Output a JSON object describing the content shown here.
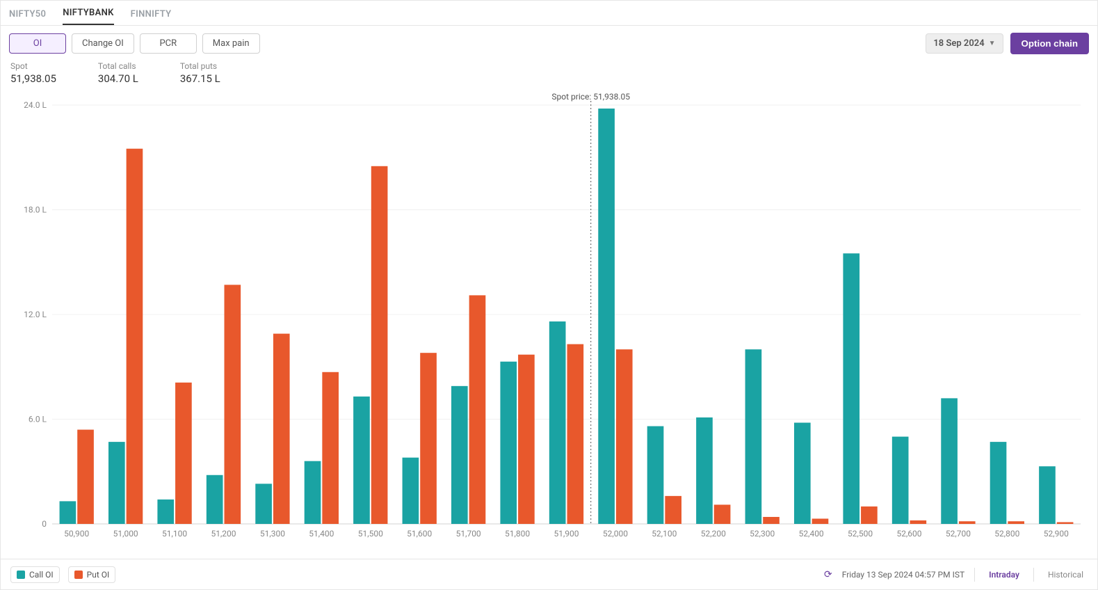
{
  "tabs": [
    "NIFTY50",
    "NIFTYBANK",
    "FINNIFTY"
  ],
  "active_tab_index": 1,
  "buttons": {
    "oi": "OI",
    "change_oi": "Change OI",
    "pcr": "PCR",
    "max_pain": "Max pain",
    "active_index": 0,
    "date": "18 Sep 2024",
    "option_chain": "Option chain"
  },
  "stats": {
    "spot_label": "Spot",
    "spot_value": "51,938.05",
    "total_calls_label": "Total calls",
    "total_calls_value": "304.70 L",
    "total_puts_label": "Total puts",
    "total_puts_value": "367.15 L"
  },
  "chart": {
    "type": "bar",
    "y_ticks": [
      0,
      6.0,
      12.0,
      18.0,
      24.0
    ],
    "y_tick_labels": [
      "0",
      "6.0 L",
      "12.0 L",
      "18.0 L",
      "24.0 L"
    ],
    "ylim": [
      0,
      24.0
    ],
    "x_labels": [
      "50,900",
      "51,000",
      "51,100",
      "51,200",
      "51,300",
      "51,400",
      "51,500",
      "51,600",
      "51,700",
      "51,800",
      "51,900",
      "52,000",
      "52,100",
      "52,200",
      "52,300",
      "52,400",
      "52,500",
      "52,600",
      "52,700",
      "52,800",
      "52,900"
    ],
    "call_values": [
      1.3,
      4.7,
      1.4,
      2.8,
      2.3,
      3.6,
      7.3,
      3.8,
      7.9,
      9.3,
      11.6,
      23.8,
      5.6,
      6.1,
      10.0,
      5.8,
      15.5,
      5.0,
      7.2,
      4.7,
      3.3
    ],
    "put_values": [
      5.4,
      21.5,
      8.1,
      13.7,
      10.9,
      8.7,
      20.5,
      9.8,
      13.1,
      9.7,
      10.3,
      10.0,
      1.6,
      1.1,
      0.4,
      0.3,
      1.0,
      0.2,
      0.15,
      0.15,
      0.1
    ],
    "call_color": "#1aa3a3",
    "put_color": "#e8582c",
    "grid_color": "#f0f0f0",
    "axis_text_color": "#888888",
    "background_color": "#ffffff",
    "spot_line_color": "#555555",
    "spot_line_after_index": 10,
    "spot_label_text": "Spot price: 51,938.05",
    "bar_pair_gap": 2,
    "bar_width_ratio": 0.7
  },
  "legend": {
    "call": "Call OI",
    "put": "Put OI"
  },
  "footer": {
    "timestamp": "Friday 13 Sep 2024 04:57 PM IST",
    "mode_intraday": "Intraday",
    "mode_historical": "Historical",
    "active_mode": "intraday"
  }
}
